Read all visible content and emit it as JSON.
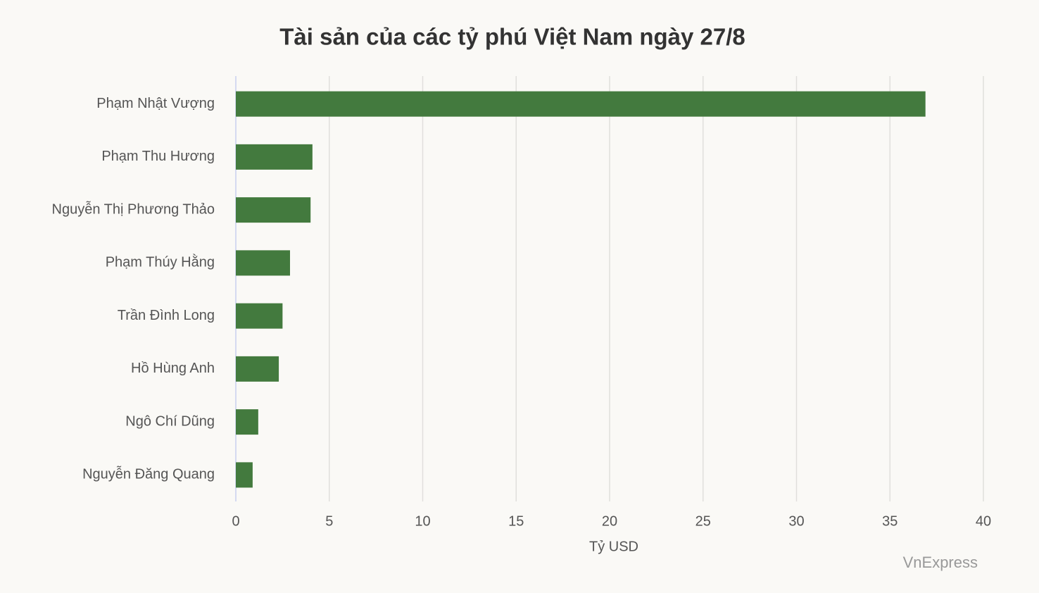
{
  "chart_data": {
    "type": "bar",
    "orientation": "horizontal",
    "title": "Tài sản của các tỷ phú Việt Nam ngày 27/8",
    "x_label": "Tỷ USD",
    "source": "VnExpress",
    "categories": [
      "Phạm Nhật Vượng",
      "Phạm Thu Hương",
      "Nguyễn Thị Phương Thảo",
      "Phạm Thúy Hằng",
      "Trần Đình Long",
      "Hồ Hùng Anh",
      "Ngô Chí Dũng",
      "Nguyễn Đăng Quang"
    ],
    "values": [
      36.9,
      4.1,
      4.0,
      2.9,
      2.5,
      2.3,
      1.2,
      0.9
    ],
    "color": "#437a3e",
    "xlim": [
      0,
      40
    ],
    "xticks": [
      0,
      5,
      10,
      15,
      20,
      25,
      30,
      35,
      40
    ],
    "grid": true
  }
}
